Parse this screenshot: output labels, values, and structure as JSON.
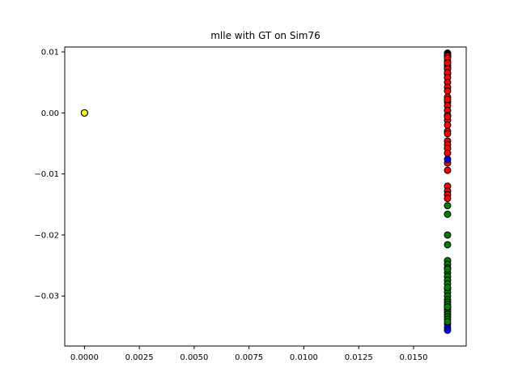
{
  "chart_data": {
    "type": "scatter",
    "title": "mlle with GT on Sim76",
    "xlabel": "",
    "ylabel": "",
    "xlim": [
      -0.0009,
      0.0174
    ],
    "ylim": [
      -0.0382,
      0.0108
    ],
    "x_ticks": [
      0.0,
      0.0025,
      0.005,
      0.0075,
      0.01,
      0.0125,
      0.015
    ],
    "x_tick_labels": [
      "0.0000",
      "0.0025",
      "0.0050",
      "0.0075",
      "0.0100",
      "0.0125",
      "0.0150"
    ],
    "y_ticks": [
      0.01,
      0.0,
      -0.01,
      -0.02,
      -0.03
    ],
    "y_tick_labels": [
      "0.01",
      "0.00",
      "−0.01",
      "−0.02",
      "−0.03"
    ],
    "grid": false,
    "legend": "none",
    "series": [
      {
        "color": "#ffff00",
        "x": [
          0.0,
          0.0,
          0.0,
          0.0
        ],
        "y": [
          0.0,
          0.0,
          0.0,
          0.0
        ]
      },
      {
        "color": "#000000",
        "x": [
          0.01655,
          0.01655,
          0.01655,
          0.01655,
          0.01655,
          0.01655,
          0.01655,
          0.01655
        ],
        "y": [
          0.0098,
          0.0096,
          0.0094,
          0.0092,
          0.0085,
          0.0078,
          0.0074,
          0.0064
        ]
      },
      {
        "color": "#ff0000",
        "x": [
          0.01655,
          0.01655,
          0.01655,
          0.01655,
          0.01655,
          0.01655,
          0.01655,
          0.01655,
          0.01655,
          0.01655,
          0.01655,
          0.01655,
          0.01655,
          0.01655,
          0.01655,
          0.01655,
          0.01655,
          0.01655,
          0.01655,
          0.01655,
          0.01655,
          0.01655,
          0.01655,
          0.01655,
          0.01655,
          0.01655,
          0.01655,
          0.01655,
          0.01655,
          0.01655
        ],
        "y": [
          0.0093,
          0.009,
          0.0082,
          0.0072,
          0.0066,
          0.0058,
          0.005,
          0.0042,
          0.0036,
          0.0026,
          0.0018,
          0.0012,
          0.0004,
          -0.0004,
          -0.0012,
          -0.002,
          -0.003,
          -0.0034,
          -0.0046,
          -0.0052,
          -0.0058,
          -0.0066,
          -0.0082,
          -0.0094,
          -0.012,
          -0.0128,
          -0.0134,
          -0.014,
          -0.0006,
          0.0022
        ]
      },
      {
        "color": "#0000ff",
        "x": [
          0.01655,
          0.01655,
          0.01655,
          0.01655
        ],
        "y": [
          -0.0076,
          -0.0346,
          -0.0352,
          -0.0356
        ]
      },
      {
        "color": "#008000",
        "x": [
          0.01655,
          0.01655,
          0.01655,
          0.01655,
          0.01655,
          0.01655,
          0.01655,
          0.01655,
          0.01655,
          0.01655,
          0.01655,
          0.01655,
          0.01655,
          0.01655,
          0.01655,
          0.01655,
          0.01655,
          0.01655,
          0.01655,
          0.01655,
          0.01655,
          0.01655,
          0.01655,
          0.01655,
          0.01655,
          0.01655,
          0.01655
        ],
        "y": [
          -0.0152,
          -0.0166,
          -0.02,
          -0.0216,
          -0.0242,
          -0.0248,
          -0.0254,
          -0.0262,
          -0.0268,
          -0.0274,
          -0.028,
          -0.0288,
          -0.0294,
          -0.03,
          -0.0306,
          -0.031,
          -0.0314,
          -0.0318,
          -0.0322,
          -0.0326,
          -0.033,
          -0.0334,
          -0.0338,
          -0.0342,
          -0.0318,
          -0.0286,
          -0.0256
        ]
      }
    ]
  }
}
